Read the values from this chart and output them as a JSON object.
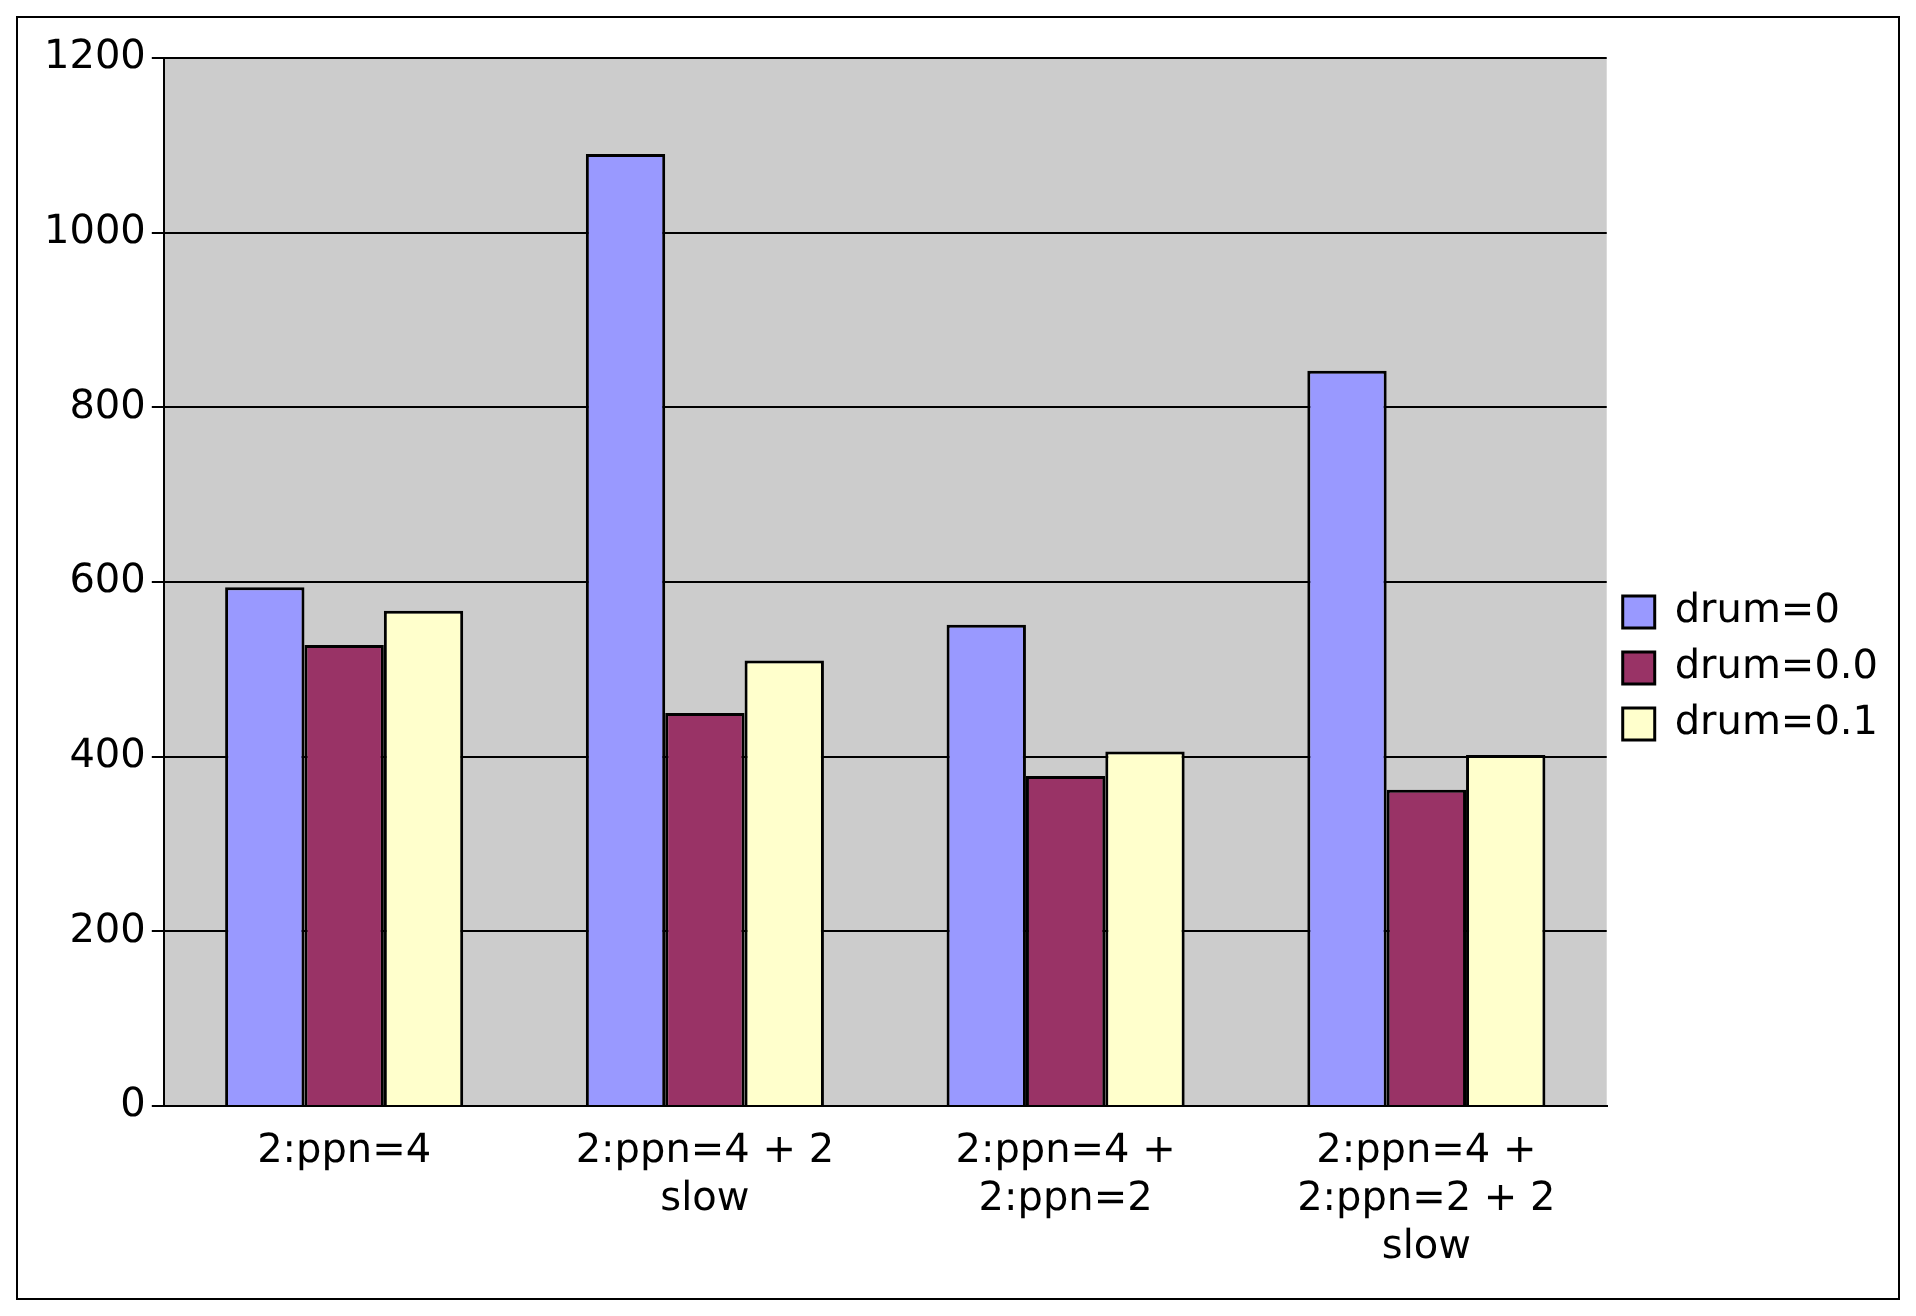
{
  "chart_data": {
    "type": "bar",
    "categories": [
      "2:ppn=4",
      "2:ppn=4 + 2 slow",
      "2:ppn=4 + 2:ppn=2",
      "2:ppn=4 + 2:ppn=2 + 2 slow"
    ],
    "series": [
      {
        "name": "drum=0",
        "color": "#9999ff",
        "values": [
          594,
          1090,
          551,
          842
        ]
      },
      {
        "name": "drum=0.0",
        "color": "#993366",
        "values": [
          528,
          450,
          378,
          362
        ]
      },
      {
        "name": "drum=0.1",
        "color": "#ffffcc",
        "values": [
          567,
          510,
          406,
          402
        ]
      }
    ],
    "ylim": [
      0,
      1200
    ],
    "yticks": [
      0,
      200,
      400,
      600,
      800,
      1000,
      1200
    ],
    "grid": "y",
    "legend": "right"
  }
}
